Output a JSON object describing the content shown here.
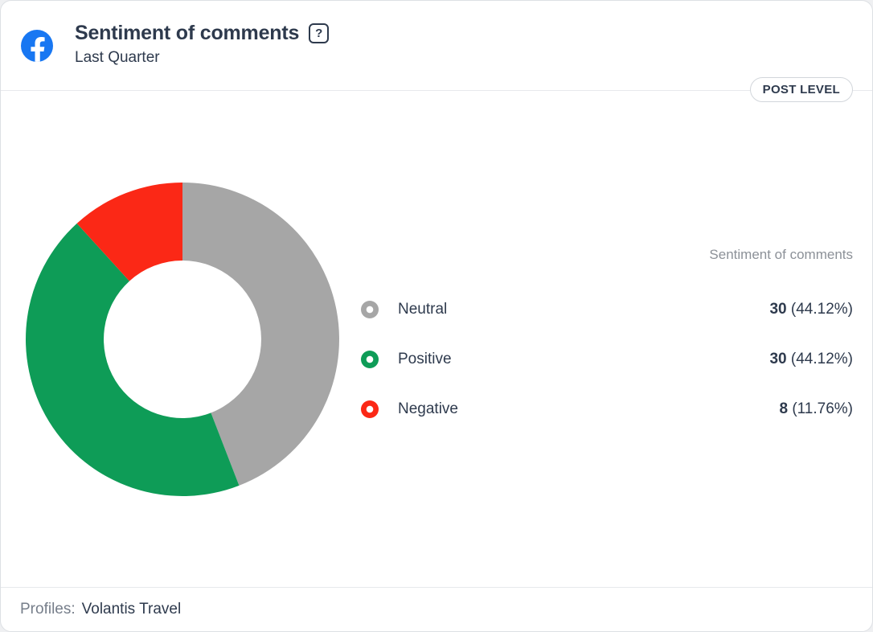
{
  "header": {
    "title": "Sentiment of comments",
    "subtitle": "Last Quarter",
    "help_glyph": "?",
    "badge_label": "POST LEVEL"
  },
  "colors": {
    "facebook_blue": "#1877f2",
    "neutral_gray": "#a6a6a6",
    "positive_green": "#0e9c57",
    "negative_red": "#fb2816",
    "dark_text": "#2e3a4d",
    "muted_text": "#8c9198"
  },
  "legend": {
    "column_header": "Sentiment of comments",
    "rows": [
      {
        "label": "Neutral",
        "value": "30",
        "percent": "(44.12%)"
      },
      {
        "label": "Positive",
        "value": "30",
        "percent": "(44.12%)"
      },
      {
        "label": "Negative",
        "value": "8",
        "percent": "(11.76%)"
      }
    ]
  },
  "footer": {
    "profiles_label": "Profiles:",
    "profiles_value": "Volantis Travel"
  },
  "chart_data": {
    "type": "pie",
    "title": "Sentiment of comments",
    "subtitle": "Last Quarter",
    "categories": [
      "Neutral",
      "Positive",
      "Negative"
    ],
    "values": [
      30,
      30,
      8
    ],
    "percentages": [
      44.12,
      44.12,
      11.76
    ],
    "colors": [
      "#a6a6a6",
      "#0e9c57",
      "#fb2816"
    ],
    "donut": true,
    "inner_radius_ratio": 0.5,
    "start_angle_deg": 0,
    "direction": "clockwise",
    "legend_position": "right"
  }
}
